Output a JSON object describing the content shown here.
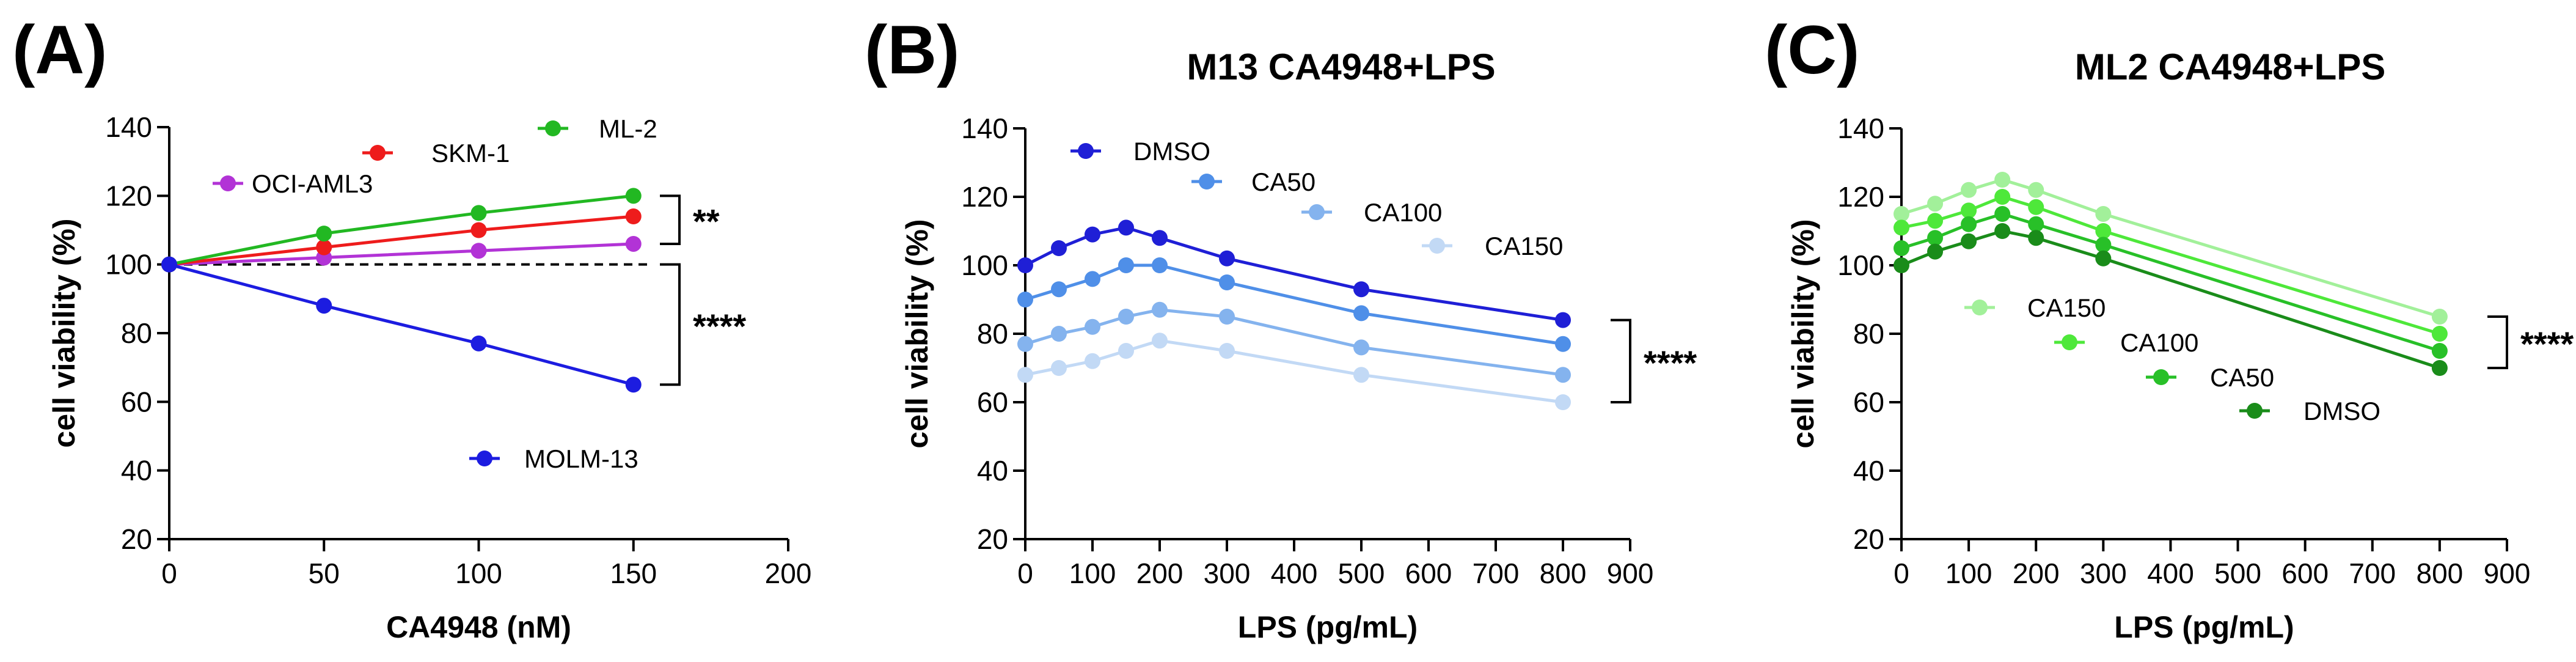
{
  "chart_data": [
    {
      "panel": "(A)",
      "type": "line",
      "title": "",
      "xlabel": "CA4948 (nM)",
      "ylabel": "cell viability (%)",
      "xlim": [
        0,
        200
      ],
      "ylim": [
        20,
        140
      ],
      "xticks": [
        0,
        50,
        100,
        150,
        200
      ],
      "yticks": [
        20,
        40,
        60,
        80,
        100,
        120,
        140
      ],
      "grid": false,
      "x": [
        0,
        50,
        100,
        150
      ],
      "series": [
        {
          "name": "OCI-AML3",
          "color": "#b233d6",
          "values": [
            100,
            102,
            104,
            106
          ]
        },
        {
          "name": "SKM-1",
          "color": "#ee1c1c",
          "values": [
            100,
            105,
            110,
            114
          ]
        },
        {
          "name": "ML-2",
          "color": "#22b822",
          "values": [
            100,
            109,
            115,
            120
          ]
        },
        {
          "name": "MOLM-13",
          "color": "#1c1ce0",
          "values": [
            100,
            88,
            77,
            65
          ]
        }
      ],
      "reference_line": {
        "y": 100,
        "style": "dashed"
      },
      "significance": [
        {
          "label": "**",
          "from": 106,
          "to": 120
        },
        {
          "label": "****",
          "from": 65,
          "to": 100
        }
      ]
    },
    {
      "panel": "(B)",
      "type": "line",
      "title": "M13 CA4948+LPS",
      "xlabel": "LPS (pg/mL)",
      "ylabel": "cell viability (%)",
      "xlim": [
        0,
        900
      ],
      "ylim": [
        20,
        140
      ],
      "xticks": [
        0,
        100,
        200,
        300,
        400,
        500,
        600,
        700,
        800,
        900
      ],
      "yticks": [
        20,
        40,
        60,
        80,
        100,
        120,
        140
      ],
      "grid": false,
      "x": [
        0,
        50,
        100,
        150,
        200,
        300,
        500,
        800
      ],
      "series": [
        {
          "name": "DMSO",
          "color": "#1f1fd6",
          "values": [
            100,
            105,
            109,
            111,
            108,
            102,
            93,
            84
          ]
        },
        {
          "name": "CA50",
          "color": "#4f8fe8",
          "values": [
            90,
            93,
            96,
            100,
            100,
            95,
            86,
            77
          ]
        },
        {
          "name": "CA100",
          "color": "#84b3ee",
          "values": [
            77,
            80,
            82,
            85,
            87,
            85,
            76,
            68
          ]
        },
        {
          "name": "CA150",
          "color": "#c2d9f5",
          "values": [
            68,
            70,
            72,
            75,
            78,
            75,
            68,
            60
          ]
        }
      ],
      "significance": [
        {
          "label": "****",
          "from": 60,
          "to": 84
        }
      ]
    },
    {
      "panel": "(C)",
      "type": "line",
      "title": "ML2 CA4948+LPS",
      "xlabel": "LPS (pg/mL)",
      "ylabel": "cell viability (%)",
      "xlim": [
        0,
        900
      ],
      "ylim": [
        20,
        140
      ],
      "xticks": [
        0,
        100,
        200,
        300,
        400,
        500,
        600,
        700,
        800,
        900
      ],
      "yticks": [
        20,
        40,
        60,
        80,
        100,
        120,
        140
      ],
      "grid": false,
      "x": [
        0,
        50,
        100,
        150,
        200,
        300,
        800
      ],
      "series": [
        {
          "name": "CA150",
          "color": "#a2f09a",
          "values": [
            115,
            118,
            122,
            125,
            122,
            115,
            85
          ]
        },
        {
          "name": "CA100",
          "color": "#4ee83a",
          "values": [
            111,
            113,
            116,
            120,
            117,
            110,
            80
          ]
        },
        {
          "name": "CA50",
          "color": "#28c028",
          "values": [
            105,
            108,
            112,
            115,
            112,
            106,
            75
          ]
        },
        {
          "name": "DMSO",
          "color": "#1a8c1a",
          "values": [
            100,
            104,
            107,
            110,
            108,
            102,
            70
          ]
        }
      ],
      "significance": [
        {
          "label": "****",
          "from": 70,
          "to": 85
        }
      ]
    }
  ]
}
